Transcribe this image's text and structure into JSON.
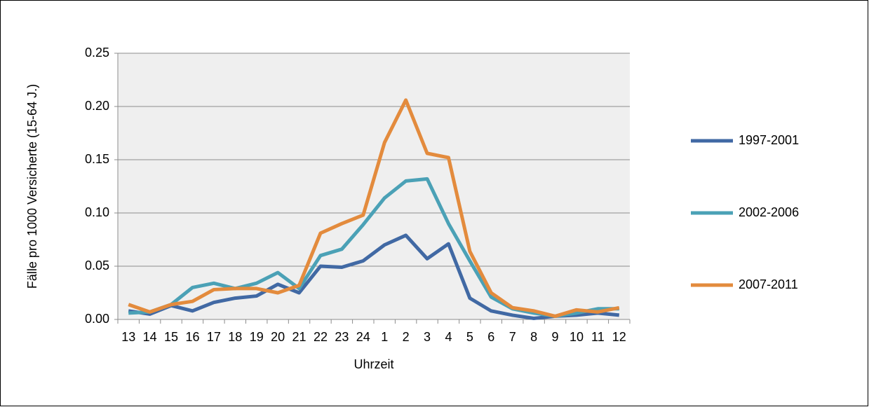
{
  "chart_data": {
    "type": "line",
    "categories": [
      "13",
      "14",
      "15",
      "16",
      "17",
      "18",
      "19",
      "20",
      "21",
      "22",
      "23",
      "24",
      "1",
      "2",
      "3",
      "4",
      "5",
      "6",
      "7",
      "8",
      "9",
      "10",
      "11",
      "12"
    ],
    "series": [
      {
        "name": "1997-2001",
        "color": "#4169a4",
        "values": [
          0.008,
          0.005,
          0.013,
          0.008,
          0.016,
          0.02,
          0.022,
          0.033,
          0.025,
          0.05,
          0.049,
          0.055,
          0.07,
          0.079,
          0.057,
          0.071,
          0.02,
          0.008,
          0.004,
          0.001,
          0.003,
          0.004,
          0.006,
          0.004
        ]
      },
      {
        "name": "2002-2006",
        "color": "#4ba1b6",
        "values": [
          0.006,
          0.007,
          0.014,
          0.03,
          0.034,
          0.029,
          0.034,
          0.044,
          0.029,
          0.06,
          0.066,
          0.089,
          0.114,
          0.13,
          0.132,
          0.09,
          0.055,
          0.021,
          0.01,
          0.006,
          0.003,
          0.006,
          0.01,
          0.01
        ]
      },
      {
        "name": "2007-2011",
        "color": "#e38b3d",
        "values": [
          0.014,
          0.007,
          0.014,
          0.017,
          0.028,
          0.029,
          0.029,
          0.025,
          0.032,
          0.081,
          0.09,
          0.098,
          0.166,
          0.206,
          0.156,
          0.152,
          0.064,
          0.025,
          0.011,
          0.008,
          0.003,
          0.009,
          0.007,
          0.011
        ]
      }
    ],
    "xlabel": "Uhrzeit",
    "ylabel": "Fälle pro 1000 Versicherte (15-64 J.)",
    "ylim": [
      0,
      0.25
    ],
    "yticks": [
      {
        "value": 0,
        "label": "0.00"
      },
      0.05,
      {
        "value": 0.1,
        "label": "0.10"
      },
      0.15,
      {
        "value": 0.2,
        "label": "0.20"
      },
      0.25
    ],
    "grid": true,
    "legend": "right"
  }
}
